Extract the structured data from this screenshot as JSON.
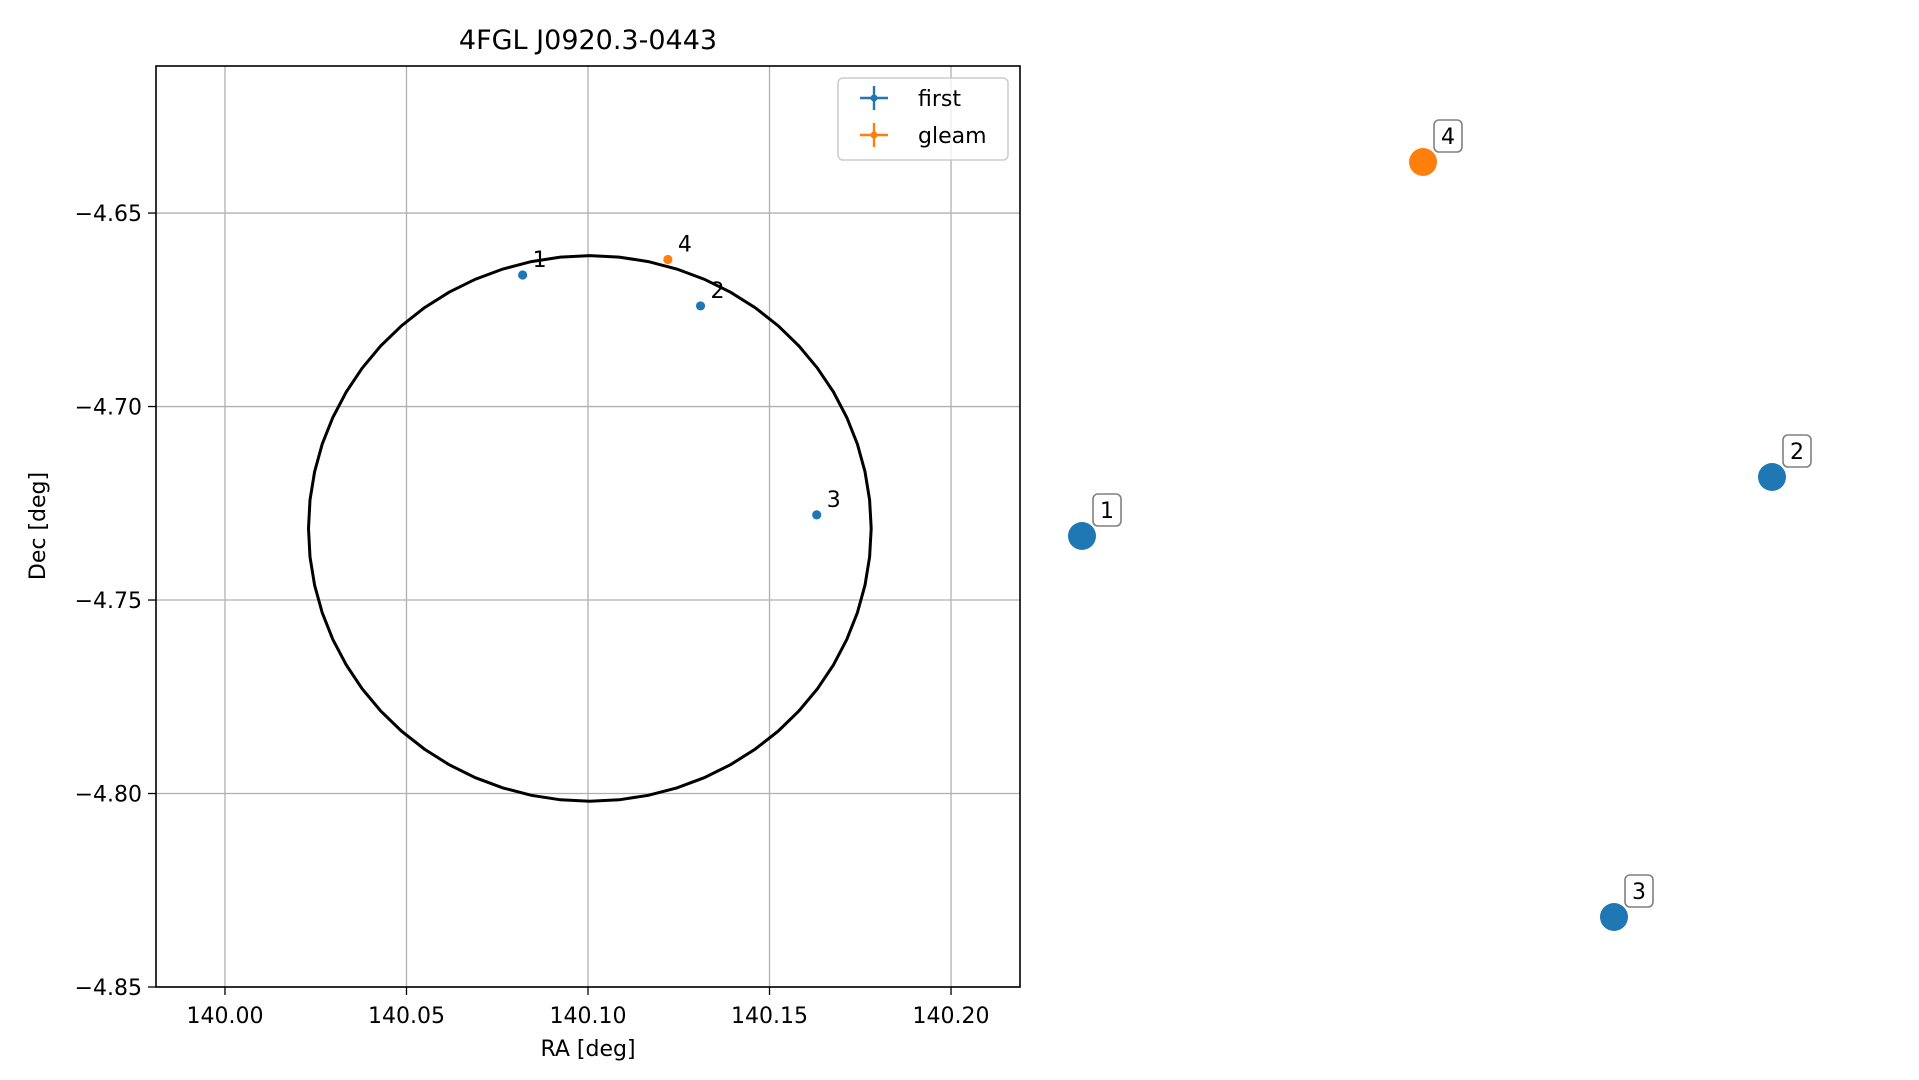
{
  "chart_data": {
    "type": "scatter",
    "title": "4FGL J0920.3-0443",
    "xlabel": "RA [deg]",
    "ylabel": "Dec [deg]",
    "xlim": [
      139.981,
      140.219
    ],
    "ylim": [
      -4.85,
      -4.612
    ],
    "xticks": [
      140.0,
      140.05,
      140.1,
      140.15,
      140.2
    ],
    "xtick_labels": [
      "140.00",
      "140.05",
      "140.10",
      "140.15",
      "140.20"
    ],
    "yticks": [
      -4.65,
      -4.7,
      -4.75,
      -4.8,
      -4.85
    ],
    "ytick_labels": [
      "−4.65",
      "−4.70",
      "−4.75",
      "−4.80",
      "−4.85"
    ],
    "grid": true,
    "legend_position": "top-right",
    "series": [
      {
        "name": "first",
        "color": "#1f77b4",
        "points": [
          {
            "label": "1",
            "x": 140.082,
            "y": -4.666
          },
          {
            "label": "2",
            "x": 140.131,
            "y": -4.674
          },
          {
            "label": "3",
            "x": 140.163,
            "y": -4.728
          }
        ]
      },
      {
        "name": "gleam",
        "color": "#ff7f0e",
        "points": [
          {
            "label": "4",
            "x": 140.122,
            "y": -4.662
          }
        ]
      }
    ],
    "error_ellipse": {
      "center_ra": 140.1005,
      "center_dec": -4.7315,
      "semi_axis_ra": 0.0775,
      "semi_axis_dec": 0.0705,
      "color": "#000000"
    }
  },
  "side_markers": [
    {
      "label": "1",
      "color": "#1f77b4"
    },
    {
      "label": "2",
      "color": "#1f77b4"
    },
    {
      "label": "3",
      "color": "#1f77b4"
    },
    {
      "label": "4",
      "color": "#ff7f0e"
    }
  ]
}
